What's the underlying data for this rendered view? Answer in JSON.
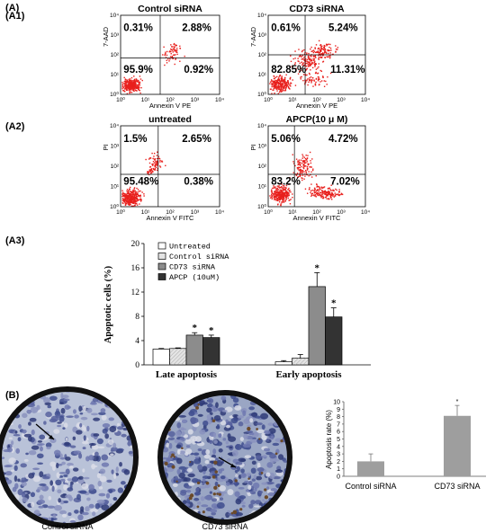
{
  "figure_label_a": "(A)",
  "figure_label_b": "(B)",
  "flow_panels": [
    {
      "tag": "(A1)",
      "title": "Control siRNA",
      "y_axis": "7-AAD",
      "x_axis": "Annexin V PE",
      "ul": "0.31%",
      "ur": "2.88%",
      "ll": "95.9%",
      "lr": "0.92%"
    },
    {
      "tag": "",
      "title": "CD73 siRNA",
      "y_axis": "7-AAD",
      "x_axis": "Annexin V PE",
      "ul": "0.61%",
      "ur": "5.24%",
      "ll": "82.85%",
      "lr": "11.31%"
    },
    {
      "tag": "(A2)",
      "title": "untreated",
      "y_axis": "PI",
      "x_axis": "Annexin V FITC",
      "ul": "1.5%",
      "ur": "2.65%",
      "ll": "95.48%",
      "lr": "0.38%"
    },
    {
      "tag": "",
      "title": "APCP(10 μ M)",
      "y_axis": "PI",
      "x_axis": "Annexin V FITC",
      "ul": "5.06%",
      "ur": "4.72%",
      "ll": "83.2%",
      "lr": "7.02%"
    }
  ],
  "flow_tick_labels": [
    "10⁰",
    "10¹",
    "10²",
    "10³",
    "10⁴"
  ],
  "a3_label": "(A3)",
  "chart_data": [
    {
      "type": "bar",
      "categories": [
        "Late apoptosis",
        "Early apoptosis"
      ],
      "ylabel": "Apoptotic cells (%)",
      "ylim": [
        0,
        20
      ],
      "yticks": [
        0,
        4,
        8,
        12,
        16,
        20
      ],
      "legend_position": "top-left",
      "series": [
        {
          "name": "Untreated",
          "values": [
            2.6,
            0.5
          ],
          "errors": [
            0.1,
            0.2
          ],
          "color": "#ffffff"
        },
        {
          "name": "Control siRNA",
          "values": [
            2.7,
            1.1
          ],
          "errors": [
            0.1,
            0.6
          ],
          "color": "#e4e4e4"
        },
        {
          "name": "CD73 siRNA",
          "values": [
            4.9,
            12.9
          ],
          "errors": [
            0.4,
            2.3
          ],
          "color": "#8c8c8c"
        },
        {
          "name": "APCP (10uM)",
          "values": [
            4.5,
            7.9
          ],
          "errors": [
            0.4,
            1.5
          ],
          "color": "#333333"
        }
      ],
      "significance": [
        [
          false,
          false,
          true,
          true
        ],
        [
          false,
          false,
          true,
          true
        ]
      ],
      "significance_mark": "*"
    },
    {
      "type": "bar",
      "categories": [
        "Control siRNA",
        "CD73 siRNA"
      ],
      "ylabel": "Apoptosis rate (%)",
      "ylim": [
        0,
        10
      ],
      "yticks": [
        0,
        1,
        2,
        3,
        4,
        5,
        6,
        7,
        8,
        9,
        10
      ],
      "values": [
        2.0,
        8.1
      ],
      "errors": [
        1.0,
        1.4
      ],
      "significance": [
        false,
        true
      ],
      "significance_mark": "*",
      "color": "#9e9e9e"
    }
  ],
  "ihc_captions": [
    "Control siRNA",
    "CD73 siRNA"
  ]
}
